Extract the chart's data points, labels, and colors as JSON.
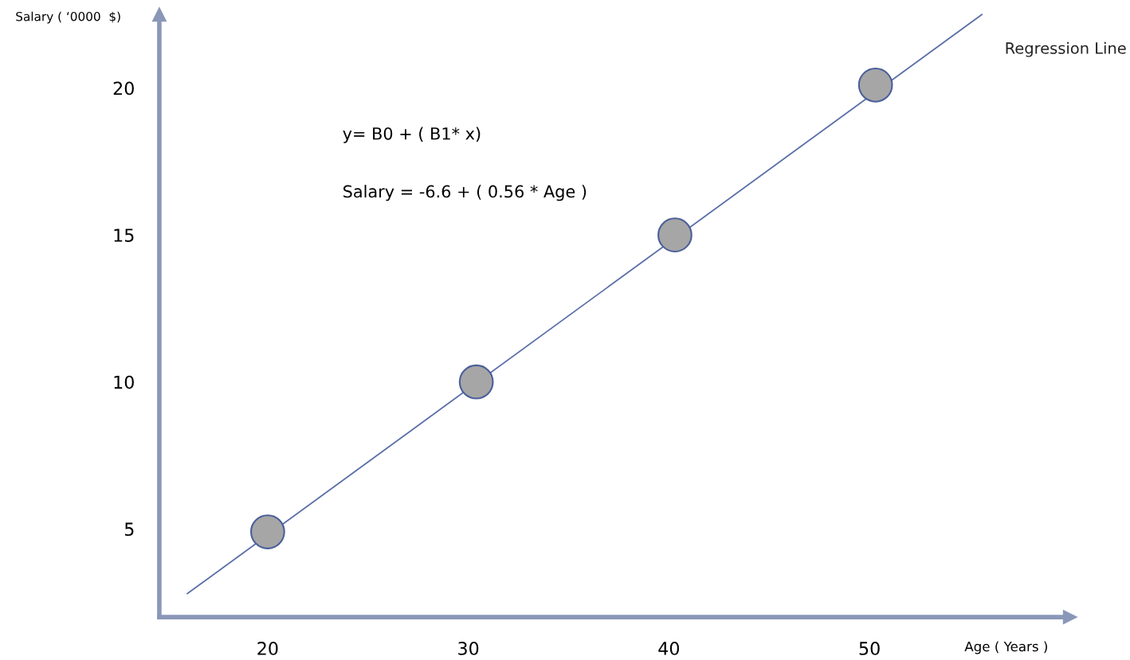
{
  "chart_data": {
    "type": "scatter",
    "xlabel": "Age ( Years )",
    "ylabel": "Salary ( ‘0000  $)",
    "xlim": [
      14.6,
      60
    ],
    "ylim": [
      2,
      22.5
    ],
    "xticks": [
      20,
      30,
      40,
      50
    ],
    "yticks": [
      5,
      10,
      15,
      20
    ],
    "grid": false,
    "legend": false,
    "series": [
      {
        "marker": "circle",
        "color": "#a6a6a6",
        "x": [
          20,
          30.4,
          40.3,
          50.3
        ],
        "values": [
          4.9,
          10,
          15,
          20.1
        ]
      },
      {
        "type": "line",
        "name": "Regression Line",
        "color": "#5a6ea8",
        "x": [
          16,
          55.6
        ],
        "values": [
          2.8,
          22.5
        ],
        "line_style": "solid"
      }
    ],
    "annotations": [
      "y= B0 + ( B1* x)",
      "Salary = -6.6 + ( 0.56 * Age )"
    ]
  }
}
